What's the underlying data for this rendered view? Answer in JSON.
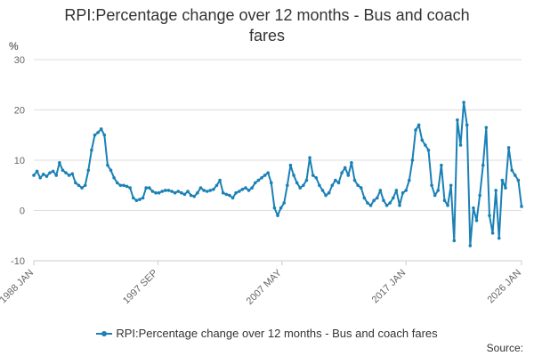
{
  "chart_data": {
    "type": "line",
    "title": "RPI:Percentage change over 12 months - Bus and coach fares",
    "ylabel": "%",
    "ylim": [
      -10,
      30
    ],
    "yticks": [
      -10,
      0,
      10,
      20,
      30
    ],
    "x_range": [
      "1988 JAN",
      "2026 JAN"
    ],
    "xtick_labels": [
      "1988 JAN",
      "1997 SEP",
      "2007 MAY",
      "2017 JAN",
      "2026 JAN"
    ],
    "grid": "horizontal",
    "legend_position": "bottom",
    "series": [
      {
        "name": "RPI:Percentage change over 12 months - Bus and coach fares",
        "color": "#1a80b6",
        "points": [
          [
            "1988 JAN",
            7.0
          ],
          [
            "1988 APR",
            7.8
          ],
          [
            "1988 JUL",
            6.5
          ],
          [
            "1988 OCT",
            7.2
          ],
          [
            "1989 JAN",
            6.8
          ],
          [
            "1989 APR",
            7.5
          ],
          [
            "1989 JUL",
            7.8
          ],
          [
            "1989 OCT",
            7.0
          ],
          [
            "1990 JAN",
            9.5
          ],
          [
            "1990 APR",
            8.0
          ],
          [
            "1990 JUL",
            7.5
          ],
          [
            "1990 OCT",
            7.0
          ],
          [
            "1991 JAN",
            7.3
          ],
          [
            "1991 APR",
            5.5
          ],
          [
            "1991 JUL",
            5.0
          ],
          [
            "1991 OCT",
            4.5
          ],
          [
            "1992 JAN",
            5.0
          ],
          [
            "1992 APR",
            8.0
          ],
          [
            "1992 JUL",
            12.0
          ],
          [
            "1992 OCT",
            15.0
          ],
          [
            "1993 JAN",
            15.5
          ],
          [
            "1993 APR",
            16.2
          ],
          [
            "1993 JUL",
            15.0
          ],
          [
            "1993 OCT",
            9.0
          ],
          [
            "1994 JAN",
            8.0
          ],
          [
            "1994 APR",
            6.5
          ],
          [
            "1994 JUL",
            5.5
          ],
          [
            "1994 OCT",
            5.0
          ],
          [
            "1995 JAN",
            5.0
          ],
          [
            "1995 APR",
            4.8
          ],
          [
            "1995 JUL",
            4.5
          ],
          [
            "1995 OCT",
            2.5
          ],
          [
            "1996 JAN",
            2.0
          ],
          [
            "1996 APR",
            2.2
          ],
          [
            "1996 JUL",
            2.5
          ],
          [
            "1996 OCT",
            4.5
          ],
          [
            "1997 JAN",
            4.5
          ],
          [
            "1997 APR",
            3.8
          ],
          [
            "1997 JUL",
            3.5
          ],
          [
            "1997 OCT",
            3.5
          ],
          [
            "1998 JAN",
            3.8
          ],
          [
            "1998 APR",
            4.0
          ],
          [
            "1998 JUL",
            4.0
          ],
          [
            "1998 OCT",
            3.8
          ],
          [
            "1999 JAN",
            3.5
          ],
          [
            "1999 APR",
            3.8
          ],
          [
            "1999 JUL",
            3.5
          ],
          [
            "1999 OCT",
            3.2
          ],
          [
            "2000 JAN",
            3.8
          ],
          [
            "2000 APR",
            3.0
          ],
          [
            "2000 JUL",
            2.8
          ],
          [
            "2000 OCT",
            3.5
          ],
          [
            "2001 JAN",
            4.5
          ],
          [
            "2001 APR",
            4.0
          ],
          [
            "2001 JUL",
            3.8
          ],
          [
            "2001 OCT",
            4.0
          ],
          [
            "2002 JAN",
            4.2
          ],
          [
            "2002 APR",
            5.0
          ],
          [
            "2002 JUL",
            6.0
          ],
          [
            "2002 OCT",
            3.5
          ],
          [
            "2003 JAN",
            3.2
          ],
          [
            "2003 APR",
            3.0
          ],
          [
            "2003 JUL",
            2.5
          ],
          [
            "2003 OCT",
            3.5
          ],
          [
            "2004 JAN",
            3.8
          ],
          [
            "2004 APR",
            4.2
          ],
          [
            "2004 JUL",
            4.5
          ],
          [
            "2004 OCT",
            4.0
          ],
          [
            "2005 JAN",
            4.5
          ],
          [
            "2005 APR",
            5.5
          ],
          [
            "2005 JUL",
            6.0
          ],
          [
            "2005 OCT",
            6.5
          ],
          [
            "2006 JAN",
            7.0
          ],
          [
            "2006 APR",
            7.5
          ],
          [
            "2006 JUL",
            5.5
          ],
          [
            "2006 OCT",
            0.5
          ],
          [
            "2007 JAN",
            -1.0
          ],
          [
            "2007 APR",
            0.5
          ],
          [
            "2007 JUL",
            1.5
          ],
          [
            "2007 OCT",
            5.0
          ],
          [
            "2008 JAN",
            9.0
          ],
          [
            "2008 APR",
            7.0
          ],
          [
            "2008 JUL",
            5.5
          ],
          [
            "2008 OCT",
            4.5
          ],
          [
            "2009 JAN",
            5.0
          ],
          [
            "2009 APR",
            6.0
          ],
          [
            "2009 JUL",
            10.5
          ],
          [
            "2009 OCT",
            7.0
          ],
          [
            "2010 JAN",
            6.5
          ],
          [
            "2010 APR",
            5.0
          ],
          [
            "2010 JUL",
            4.0
          ],
          [
            "2010 OCT",
            3.0
          ],
          [
            "2011 JAN",
            3.5
          ],
          [
            "2011 APR",
            5.0
          ],
          [
            "2011 JUL",
            6.0
          ],
          [
            "2011 OCT",
            5.5
          ],
          [
            "2012 JAN",
            7.5
          ],
          [
            "2012 APR",
            8.5
          ],
          [
            "2012 JUL",
            7.0
          ],
          [
            "2012 OCT",
            9.5
          ],
          [
            "2013 JAN",
            6.0
          ],
          [
            "2013 APR",
            5.0
          ],
          [
            "2013 JUL",
            4.5
          ],
          [
            "2013 OCT",
            2.5
          ],
          [
            "2014 JAN",
            1.5
          ],
          [
            "2014 APR",
            1.0
          ],
          [
            "2014 JUL",
            2.0
          ],
          [
            "2014 OCT",
            2.5
          ],
          [
            "2015 JAN",
            4.0
          ],
          [
            "2015 APR",
            2.0
          ],
          [
            "2015 JUL",
            1.0
          ],
          [
            "2015 OCT",
            1.5
          ],
          [
            "2016 JAN",
            2.5
          ],
          [
            "2016 APR",
            4.0
          ],
          [
            "2016 JUL",
            1.0
          ],
          [
            "2016 OCT",
            3.5
          ],
          [
            "2017 JAN",
            4.0
          ],
          [
            "2017 APR",
            6.0
          ],
          [
            "2017 JUL",
            10.0
          ],
          [
            "2017 OCT",
            16.0
          ],
          [
            "2018 JAN",
            17.0
          ],
          [
            "2018 APR",
            14.0
          ],
          [
            "2018 JUL",
            13.0
          ],
          [
            "2018 OCT",
            12.0
          ],
          [
            "2019 JAN",
            5.0
          ],
          [
            "2019 APR",
            3.0
          ],
          [
            "2019 JUL",
            4.0
          ],
          [
            "2019 OCT",
            9.0
          ],
          [
            "2020 JAN",
            2.0
          ],
          [
            "2020 APR",
            1.0
          ],
          [
            "2020 JUL",
            5.0
          ],
          [
            "2020 OCT",
            -6.0
          ],
          [
            "2021 JAN",
            18.0
          ],
          [
            "2021 APR",
            13.0
          ],
          [
            "2021 JUL",
            21.5
          ],
          [
            "2021 OCT",
            17.0
          ],
          [
            "2022 JAN",
            -7.0
          ],
          [
            "2022 APR",
            0.5
          ],
          [
            "2022 JUL",
            -2.0
          ],
          [
            "2022 OCT",
            3.0
          ],
          [
            "2023 JAN",
            9.0
          ],
          [
            "2023 APR",
            16.5
          ],
          [
            "2023 JUL",
            -1.0
          ],
          [
            "2023 OCT",
            -4.5
          ],
          [
            "2024 JAN",
            4.0
          ],
          [
            "2024 APR",
            -5.5
          ],
          [
            "2024 JUL",
            6.0
          ],
          [
            "2024 OCT",
            4.5
          ],
          [
            "2025 JAN",
            12.5
          ],
          [
            "2025 APR",
            8.0
          ],
          [
            "2025 JUL",
            7.0
          ],
          [
            "2025 OCT",
            6.0
          ],
          [
            "2026 JAN",
            0.8
          ]
        ]
      }
    ]
  },
  "legend": {
    "label": "RPI:Percentage change over 12 months - Bus and coach fares"
  },
  "footer": {
    "source_label": "Source:"
  }
}
